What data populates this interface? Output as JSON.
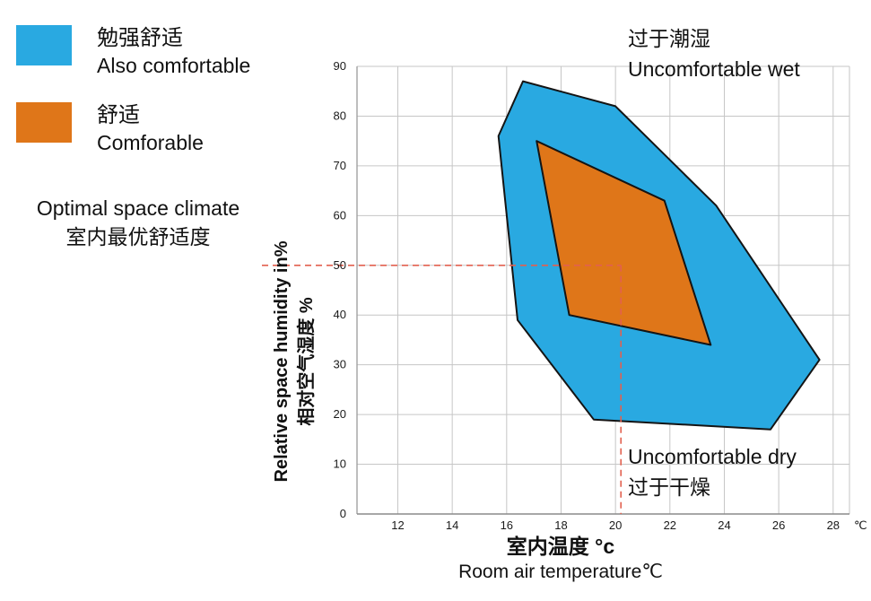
{
  "legend": {
    "items": [
      {
        "label_zh": "勉强舒适",
        "label_en": "Also comfortable",
        "swatch_color": "#29a9e1"
      },
      {
        "label_zh": "舒适",
        "label_en": "Comforable",
        "swatch_color": "#df7619"
      }
    ]
  },
  "optimal_label": {
    "line1": "Optimal space climate",
    "line2": "室内最优舒适度"
  },
  "y_axis": {
    "label_en": "Relative space humidity in%",
    "label_zh": "相对空气湿度 %"
  },
  "x_axis": {
    "label_zh": "室内温度 °c",
    "label_en": "Room air temperature℃",
    "unit_suffix": "℃"
  },
  "annotations": {
    "wet_zh": "过于潮湿",
    "wet_en": "Uncomfortable wet",
    "dry_en": "Uncomfortable dry",
    "dry_zh": "过于干燥"
  },
  "chart_data": {
    "type": "area",
    "title": "Room comfort zones: relative humidity vs room air temperature",
    "xlabel": "室内温度 °c / Room air temperature ℃",
    "ylabel": "Relative space humidity in% / 相对空气湿度 %",
    "x_ticks": [
      12,
      14,
      16,
      18,
      20,
      22,
      24,
      26,
      28
    ],
    "y_ticks": [
      0,
      10,
      20,
      30,
      40,
      50,
      60,
      70,
      80,
      90
    ],
    "x_range": [
      10.5,
      28.6
    ],
    "y_range": [
      0,
      90
    ],
    "grid": true,
    "legend_position": "top-left",
    "series": [
      {
        "name": "勉强舒适 Also comfortable",
        "color": "#29a9e1",
        "points": [
          [
            16.6,
            87
          ],
          [
            20,
            82
          ],
          [
            23.7,
            62
          ],
          [
            27.5,
            31
          ],
          [
            25.7,
            17
          ],
          [
            19.2,
            19
          ],
          [
            16.4,
            39
          ],
          [
            15.7,
            76
          ]
        ]
      },
      {
        "name": "舒适 Comforable",
        "color": "#df7619",
        "points": [
          [
            17.1,
            75
          ],
          [
            21.8,
            63
          ],
          [
            23.5,
            34
          ],
          [
            18.3,
            40
          ]
        ]
      }
    ],
    "optimal_point": {
      "temp": 20.2,
      "humidity": 50
    },
    "dashed_color": "#e2604f"
  }
}
